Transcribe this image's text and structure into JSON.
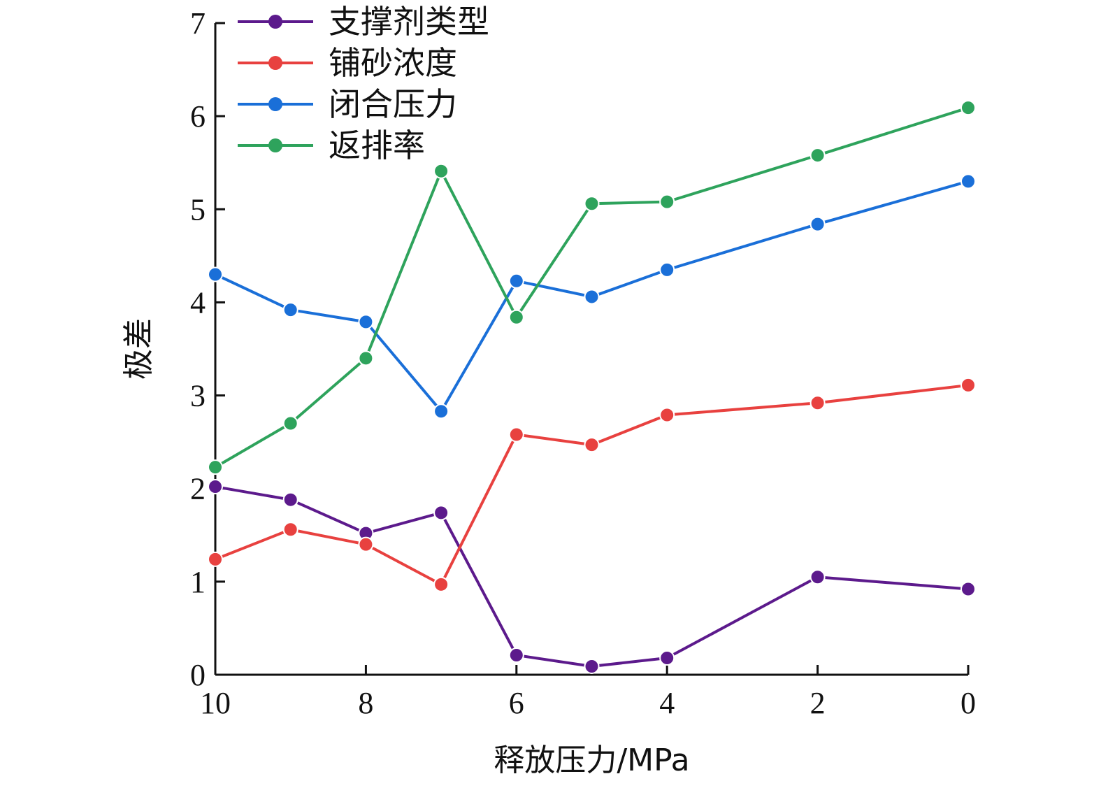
{
  "chart_data": {
    "type": "line",
    "xlabel": "释放压力/MPa",
    "ylabel": "极差",
    "xlim": [
      10,
      0
    ],
    "ylim": [
      0,
      7
    ],
    "x_ticks": [
      10,
      8,
      6,
      4,
      2,
      0
    ],
    "y_ticks": [
      0,
      1,
      2,
      3,
      4,
      5,
      6,
      7
    ],
    "grid": false,
    "legend_position": "top-left",
    "x": [
      10,
      9,
      8,
      7,
      6,
      5,
      4,
      2,
      0
    ],
    "series": [
      {
        "name": "支撑剂类型",
        "color": "#5c1a8c",
        "values": [
          2.02,
          1.88,
          1.52,
          1.74,
          0.21,
          0.09,
          0.18,
          1.05,
          0.92
        ]
      },
      {
        "name": "铺砂浓度",
        "color": "#e8413f",
        "values": [
          1.24,
          1.56,
          1.4,
          0.97,
          2.58,
          2.47,
          2.79,
          2.92,
          3.11
        ]
      },
      {
        "name": "闭合压力",
        "color": "#1a6fd8",
        "values": [
          4.3,
          3.92,
          3.79,
          2.83,
          4.23,
          4.06,
          4.35,
          4.84,
          5.3
        ]
      },
      {
        "name": "返排率",
        "color": "#2ea35c",
        "values": [
          2.23,
          2.7,
          3.4,
          5.41,
          3.84,
          5.06,
          5.08,
          5.58,
          6.09
        ]
      }
    ]
  }
}
